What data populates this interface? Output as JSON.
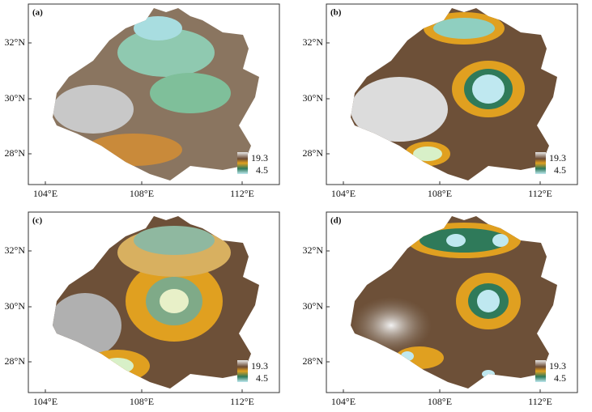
{
  "panels": [
    {
      "label": "(a)"
    },
    {
      "label": "(b)"
    },
    {
      "label": "(c)"
    },
    {
      "label": "(d)"
    }
  ],
  "axes": {
    "x_ticks": [
      "104°E",
      "108°E",
      "112°E"
    ],
    "y_ticks": [
      "32°N",
      "30°N",
      "28°N"
    ]
  },
  "legend": {
    "max": "19.3",
    "min": "4.5"
  }
}
